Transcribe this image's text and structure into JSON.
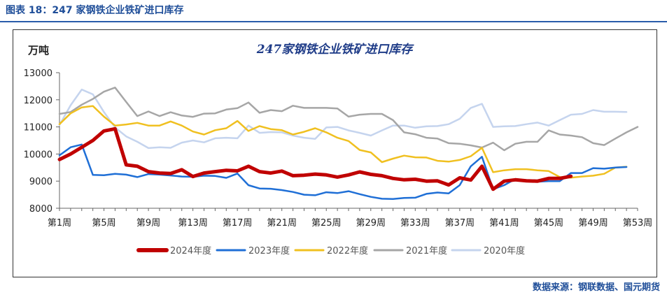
{
  "figure": {
    "caption": "图表 18：247 家钢铁企业铁矿进口库存",
    "source": "数据来源：钢联数据、国元期货"
  },
  "chart_data": {
    "type": "line",
    "title": "247家钢铁企业铁矿进口库存",
    "ylabel": "万吨",
    "xlabel": "",
    "ylim": [
      8000,
      13000
    ],
    "yticks": [
      8000,
      9000,
      10000,
      11000,
      12000,
      13000
    ],
    "xlim": [
      1,
      53
    ],
    "xticks": [
      1,
      5,
      9,
      13,
      17,
      21,
      25,
      29,
      33,
      37,
      41,
      45,
      49,
      53
    ],
    "xtick_labels": [
      "第1周",
      "第5周",
      "第9周",
      "第13周",
      "第17周",
      "第21周",
      "第25周",
      "第29周",
      "第33周",
      "第37周",
      "第41周",
      "第45周",
      "第49周",
      "第53周"
    ],
    "grid": false,
    "legend": "bottom",
    "series": [
      {
        "name": "2024年度",
        "color": "#c00000",
        "width": 5,
        "x": [
          1,
          2,
          3,
          4,
          5,
          6,
          7,
          8,
          9,
          10,
          11,
          12,
          13,
          14,
          15,
          16,
          17,
          18,
          19,
          20,
          21,
          22,
          23,
          24,
          25,
          26,
          27,
          28,
          29,
          30,
          31,
          32,
          33,
          34,
          35,
          36,
          37,
          38,
          39,
          40,
          41,
          42,
          43,
          44,
          45,
          46,
          47
        ],
        "y": [
          9800,
          10000,
          10250,
          10500,
          10850,
          10930,
          9600,
          9550,
          9350,
          9300,
          9280,
          9420,
          9170,
          9300,
          9350,
          9400,
          9380,
          9550,
          9350,
          9300,
          9370,
          9200,
          9220,
          9260,
          9230,
          9150,
          9230,
          9340,
          9250,
          9200,
          9100,
          9050,
          9070,
          9000,
          9010,
          8860,
          9120,
          9040,
          9550,
          8700,
          9000,
          9050,
          9010,
          9000,
          9100,
          9100,
          9180
        ]
      },
      {
        "name": "2023年度",
        "color": "#1f6fd6",
        "width": 2.5,
        "x": [
          1,
          2,
          3,
          4,
          5,
          6,
          7,
          8,
          9,
          10,
          11,
          12,
          13,
          14,
          15,
          16,
          17,
          18,
          19,
          20,
          21,
          22,
          23,
          24,
          25,
          26,
          27,
          28,
          29,
          30,
          31,
          32,
          33,
          34,
          35,
          36,
          37,
          38,
          39,
          40,
          41,
          42,
          43,
          44,
          45,
          46,
          47,
          48,
          49,
          50,
          51,
          52
        ],
        "y": [
          9950,
          10250,
          10350,
          9230,
          9220,
          9270,
          9240,
          9150,
          9260,
          9240,
          9210,
          9170,
          9160,
          9200,
          9190,
          9120,
          9280,
          8850,
          8730,
          8720,
          8670,
          8600,
          8500,
          8480,
          8590,
          8560,
          8630,
          8520,
          8420,
          8350,
          8340,
          8380,
          8390,
          8530,
          8580,
          8550,
          8850,
          9550,
          9900,
          8700,
          8850,
          9080,
          9030,
          8980,
          9000,
          9000,
          9300,
          9300,
          9480,
          9460,
          9500,
          9520
        ]
      },
      {
        "name": "2022年度",
        "color": "#f0c020",
        "width": 2.5,
        "x": [
          1,
          2,
          3,
          4,
          5,
          6,
          7,
          8,
          9,
          10,
          11,
          12,
          13,
          14,
          15,
          16,
          17,
          18,
          19,
          20,
          21,
          22,
          23,
          24,
          25,
          26,
          27,
          28,
          29,
          30,
          31,
          32,
          33,
          34,
          35,
          36,
          37,
          38,
          39,
          40,
          41,
          42,
          43,
          44,
          45,
          46,
          47,
          48,
          49,
          50,
          51,
          52
        ],
        "y": [
          11100,
          11500,
          11720,
          11770,
          11380,
          11050,
          11090,
          11150,
          11050,
          11050,
          11200,
          11050,
          10830,
          10720,
          10880,
          10950,
          11220,
          10850,
          11030,
          10920,
          10880,
          10720,
          10820,
          10950,
          10800,
          10600,
          10480,
          10150,
          10060,
          9700,
          9830,
          9940,
          9880,
          9870,
          9750,
          9720,
          9780,
          9920,
          10230,
          9330,
          9400,
          9440,
          9440,
          9400,
          9370,
          9150,
          9130,
          9170,
          9200,
          9270,
          9500,
          9530
        ]
      },
      {
        "name": "2021年度",
        "color": "#a6a6a6",
        "width": 2.5,
        "x": [
          1,
          2,
          3,
          4,
          5,
          6,
          7,
          8,
          9,
          10,
          11,
          12,
          13,
          14,
          15,
          16,
          17,
          18,
          19,
          20,
          21,
          22,
          23,
          24,
          25,
          26,
          27,
          28,
          29,
          30,
          31,
          32,
          33,
          34,
          35,
          36,
          37,
          38,
          39,
          40,
          41,
          42,
          43,
          44,
          45,
          46,
          47,
          48,
          49,
          50,
          51,
          52,
          53
        ],
        "y": [
          11480,
          11550,
          11820,
          12030,
          12300,
          12450,
          11920,
          11400,
          11570,
          11400,
          11540,
          11420,
          11370,
          11490,
          11500,
          11640,
          11690,
          11900,
          11520,
          11620,
          11580,
          11780,
          11700,
          11700,
          11700,
          11680,
          11380,
          11450,
          11480,
          11480,
          11250,
          10800,
          10730,
          10600,
          10570,
          10400,
          10380,
          10320,
          10240,
          10420,
          10140,
          10380,
          10450,
          10450,
          10870,
          10720,
          10680,
          10620,
          10400,
          10330,
          10570,
          10800,
          11000
        ]
      },
      {
        "name": "2020年度",
        "color": "#c5d4ee",
        "width": 2.5,
        "x": [
          1,
          2,
          3,
          4,
          5,
          6,
          7,
          8,
          9,
          10,
          11,
          12,
          13,
          14,
          15,
          16,
          17,
          18,
          19,
          20,
          21,
          22,
          23,
          24,
          25,
          26,
          27,
          28,
          29,
          30,
          31,
          32,
          33,
          34,
          35,
          36,
          37,
          38,
          39,
          40,
          41,
          42,
          43,
          44,
          45,
          46,
          47,
          48,
          49,
          50,
          51,
          52
        ],
        "y": [
          11070,
          11800,
          12380,
          12200,
          11550,
          10980,
          10650,
          10450,
          10220,
          10250,
          10230,
          10420,
          10500,
          10430,
          10580,
          10600,
          10580,
          11050,
          10780,
          10810,
          10800,
          10680,
          10600,
          10560,
          10980,
          11000,
          10870,
          10780,
          10680,
          10870,
          11050,
          11050,
          10970,
          11020,
          11030,
          11100,
          11300,
          11700,
          11850,
          11000,
          11020,
          11030,
          11100,
          11160,
          11050,
          11250,
          11450,
          11480,
          11620,
          11560,
          11560,
          11550
        ]
      }
    ]
  }
}
